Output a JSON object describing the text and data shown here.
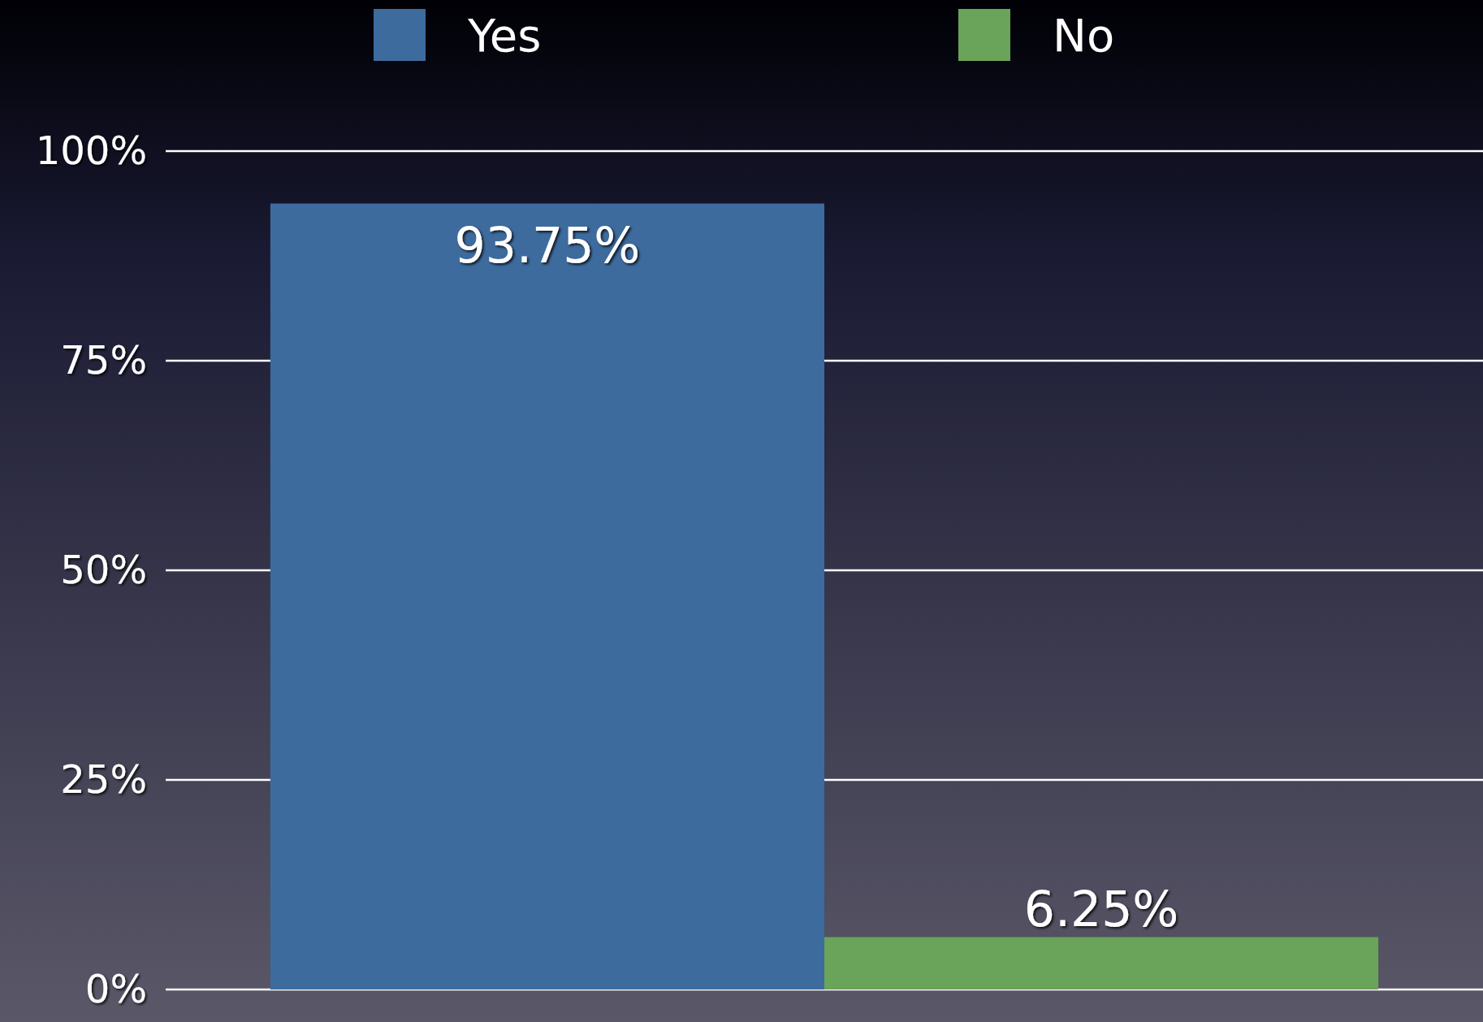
{
  "chart_data": {
    "type": "bar",
    "categories": [
      null
    ],
    "series": [
      {
        "name": "Yes",
        "color": "#3d6b9e",
        "values": [
          93.75
        ]
      },
      {
        "name": "No",
        "color": "#6aa35a",
        "values": [
          6.25
        ]
      }
    ],
    "ylim": [
      0,
      100
    ],
    "yticks": [
      {
        "value": 0,
        "label": "0%"
      },
      {
        "value": 25,
        "label": "25%"
      },
      {
        "value": 50,
        "label": "50%"
      },
      {
        "value": 75,
        "label": "75%"
      },
      {
        "value": 100,
        "label": "100%"
      }
    ],
    "value_labels": [
      [
        "93.75%"
      ],
      [
        "6.25%"
      ]
    ],
    "grid": "y",
    "legend": "top"
  }
}
